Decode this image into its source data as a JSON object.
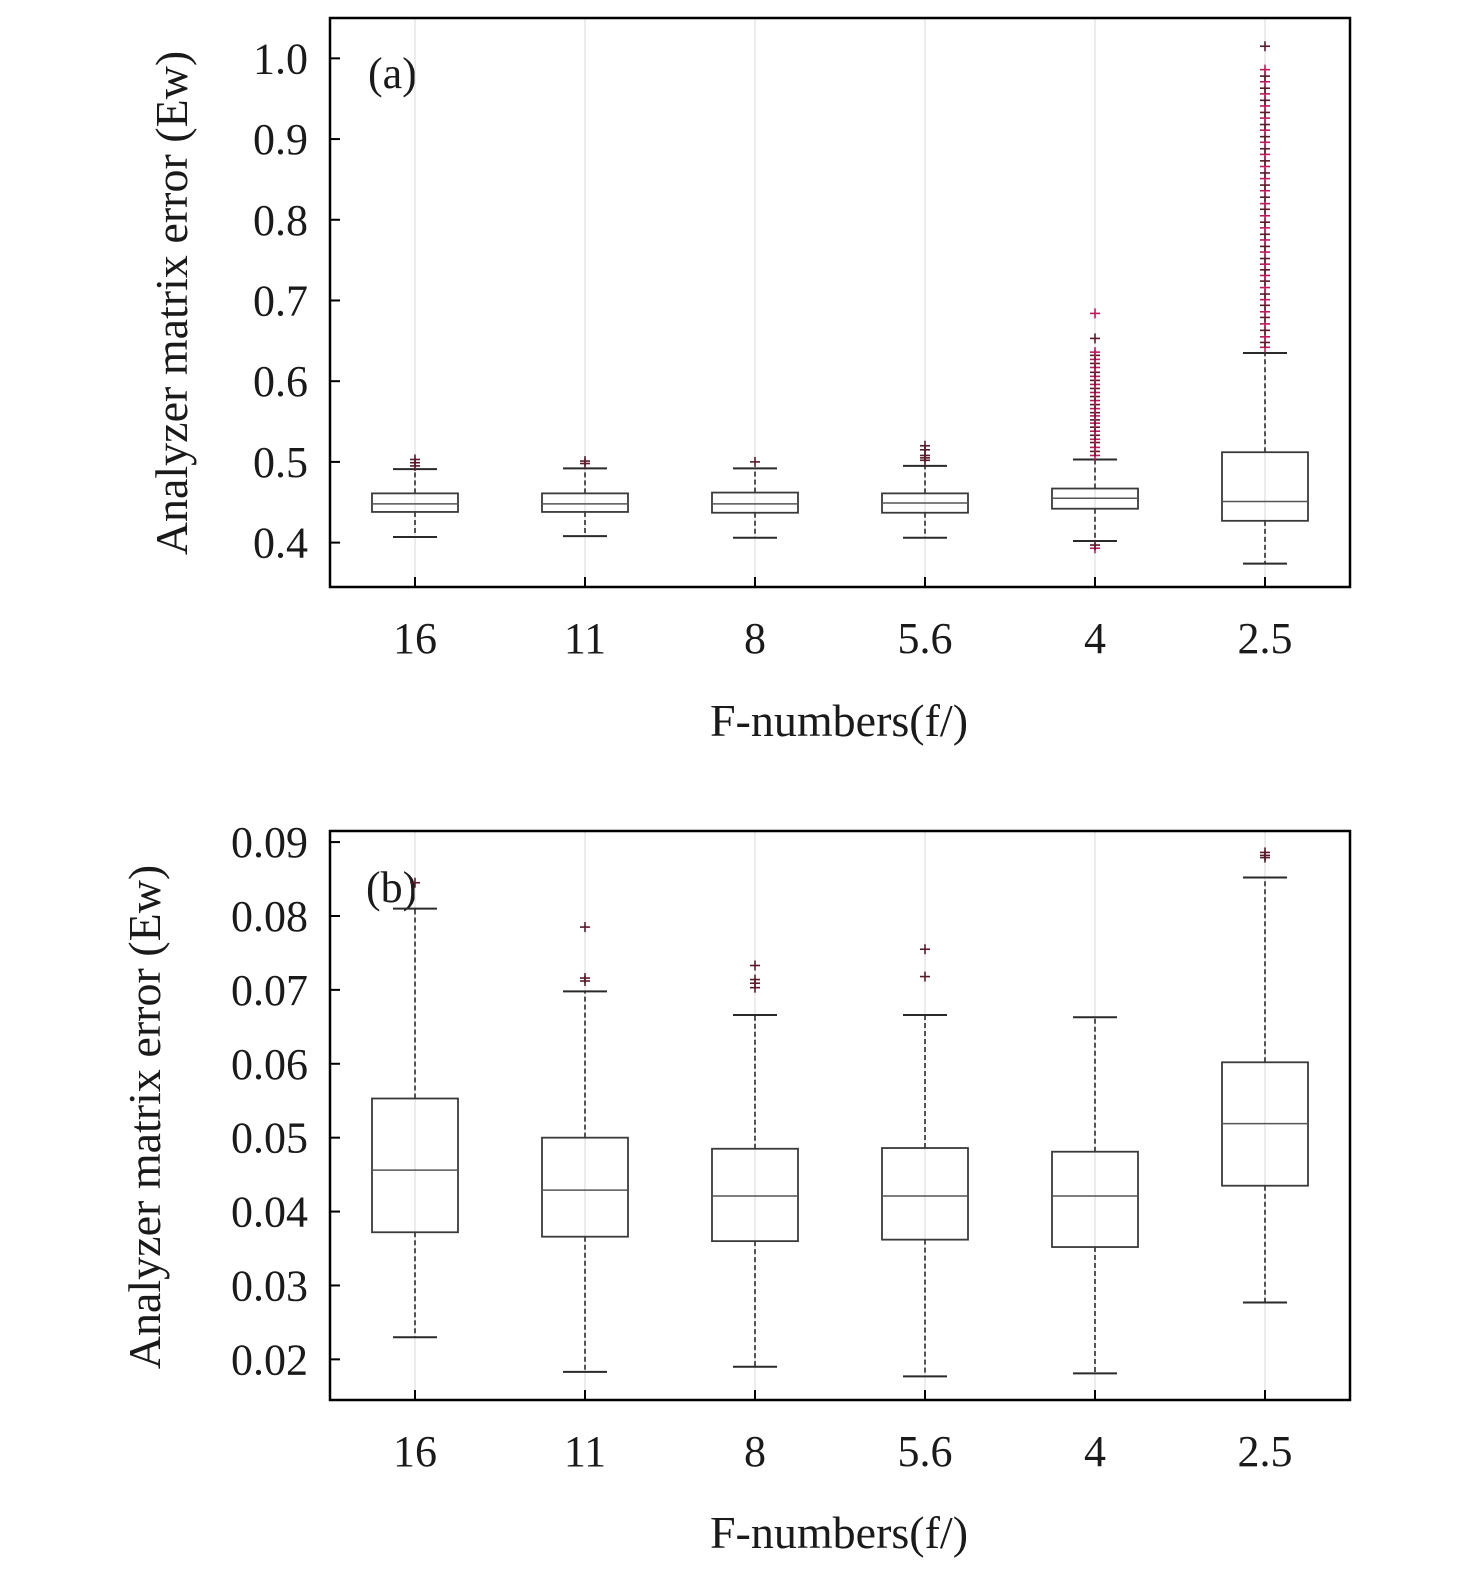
{
  "chart_data": [
    {
      "type": "box",
      "panel_label": "(a)",
      "xlabel": "F-numbers(f/)",
      "ylabel": "Analyzer matrix error (Ew)",
      "categories": [
        "16",
        "11",
        "8",
        "5.6",
        "4",
        "2.5"
      ],
      "ylim": [
        0.345,
        1.05
      ],
      "yticks": [
        "0.4",
        "0.5",
        "0.6",
        "0.7",
        "0.8",
        "0.9",
        "1.0"
      ],
      "boxes": [
        {
          "whisker_low": 0.407,
          "q1": 0.438,
          "median": 0.448,
          "q3": 0.461,
          "whisker_high": 0.491,
          "outliers": [
            0.495,
            0.499,
            0.503
          ]
        },
        {
          "whisker_low": 0.408,
          "q1": 0.438,
          "median": 0.448,
          "q3": 0.461,
          "whisker_high": 0.492,
          "outliers": [
            0.498,
            0.501
          ]
        },
        {
          "whisker_low": 0.406,
          "q1": 0.437,
          "median": 0.448,
          "q3": 0.462,
          "whisker_high": 0.492,
          "outliers": [
            0.5
          ]
        },
        {
          "whisker_low": 0.406,
          "q1": 0.437,
          "median": 0.449,
          "q3": 0.461,
          "whisker_high": 0.495,
          "outliers": [
            0.502,
            0.505,
            0.508,
            0.515,
            0.52
          ]
        },
        {
          "whisker_low": 0.402,
          "q1": 0.442,
          "median": 0.455,
          "q3": 0.467,
          "whisker_high": 0.503,
          "outliers": [
            0.393,
            0.397,
            0.508,
            0.513,
            0.518,
            0.524,
            0.528,
            0.533,
            0.538,
            0.543,
            0.548,
            0.552,
            0.557,
            0.561,
            0.566,
            0.571,
            0.576,
            0.581,
            0.586,
            0.591,
            0.596,
            0.601,
            0.606,
            0.611,
            0.617,
            0.622,
            0.627,
            0.632,
            0.636,
            0.653,
            0.684
          ]
        },
        {
          "whisker_low": 0.374,
          "q1": 0.427,
          "median": 0.451,
          "q3": 0.512,
          "whisker_high": 0.635,
          "outliers": [
            0.642,
            0.648,
            0.655,
            0.663,
            0.671,
            0.679,
            0.686,
            0.694,
            0.701,
            0.708,
            0.716,
            0.724,
            0.731,
            0.738,
            0.745,
            0.752,
            0.76,
            0.767,
            0.775,
            0.782,
            0.79,
            0.797,
            0.805,
            0.813,
            0.82,
            0.828,
            0.836,
            0.843,
            0.851,
            0.858,
            0.866,
            0.873,
            0.881,
            0.888,
            0.896,
            0.903,
            0.911,
            0.918,
            0.926,
            0.933,
            0.941,
            0.948,
            0.956,
            0.963,
            0.971,
            0.978,
            0.986,
            1.015
          ]
        }
      ]
    },
    {
      "type": "box",
      "panel_label": "(b)",
      "xlabel": "F-numbers(f/)",
      "ylabel": "Analyzer matrix error (Ew)",
      "categories": [
        "16",
        "11",
        "8",
        "5.6",
        "4",
        "2.5"
      ],
      "ylim": [
        0.0145,
        0.0915
      ],
      "yticks": [
        "0.02",
        "0.03",
        "0.04",
        "0.05",
        "0.06",
        "0.07",
        "0.08",
        "0.09"
      ],
      "boxes": [
        {
          "whisker_low": 0.023,
          "q1": 0.0372,
          "median": 0.0456,
          "q3": 0.0553,
          "whisker_high": 0.081,
          "outliers": [
            0.0845
          ]
        },
        {
          "whisker_low": 0.0183,
          "q1": 0.0366,
          "median": 0.0429,
          "q3": 0.05,
          "whisker_high": 0.0698,
          "outliers": [
            0.0712,
            0.0716,
            0.0785
          ]
        },
        {
          "whisker_low": 0.019,
          "q1": 0.036,
          "median": 0.0421,
          "q3": 0.0485,
          "whisker_high": 0.0666,
          "outliers": [
            0.0703,
            0.0709,
            0.0714,
            0.0733
          ]
        },
        {
          "whisker_low": 0.0177,
          "q1": 0.0362,
          "median": 0.0421,
          "q3": 0.0486,
          "whisker_high": 0.0666,
          "outliers": [
            0.0718,
            0.0755
          ]
        },
        {
          "whisker_low": 0.0181,
          "q1": 0.0352,
          "median": 0.0421,
          "q3": 0.0481,
          "whisker_high": 0.0663,
          "outliers": []
        },
        {
          "whisker_low": 0.0277,
          "q1": 0.0435,
          "median": 0.0519,
          "q3": 0.0602,
          "whisker_high": 0.0852,
          "outliers": [
            0.0879,
            0.0882,
            0.0886
          ]
        }
      ]
    }
  ],
  "colors": {
    "box": "#3a3a3a",
    "median": "#555555",
    "whisker": "#2a2a2a",
    "outlier": "#5a1a2a",
    "outlier_dense": "#c2185b",
    "gridline": "#d9d9d9",
    "frame": "#000000"
  }
}
